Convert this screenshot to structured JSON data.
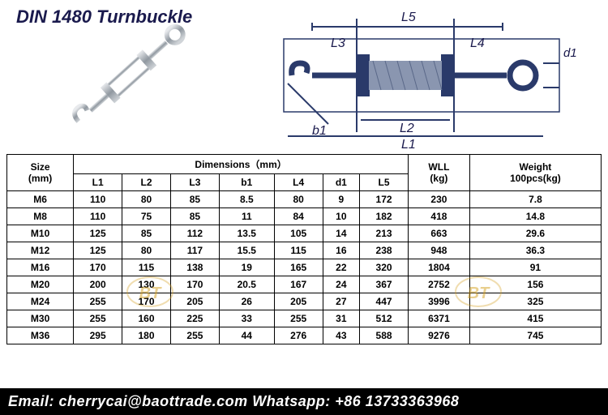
{
  "title": "DIN 1480 Turnbuckle",
  "footer": {
    "email_label": "Email:",
    "email": "cherrycai@baottrade.com",
    "whatsapp_label": "Whatsapp:",
    "whatsapp": "+86 13733363968"
  },
  "diagram_labels": {
    "L1": "L1",
    "L2": "L2",
    "L3": "L3",
    "L4": "L4",
    "L5": "L5",
    "b1": "b1",
    "d1": "d1"
  },
  "headers": {
    "size": "Size\n(mm)",
    "dimensions": "Dimensions（mm）",
    "wll": "WLL\n(kg)",
    "weight": "Weight\n100pcs(kg)",
    "cols": [
      "L1",
      "L2",
      "L3",
      "b1",
      "L4",
      "d1",
      "L5"
    ]
  },
  "rows": [
    {
      "size": "M6",
      "L1": "110",
      "L2": "80",
      "L3": "85",
      "b1": "8.5",
      "L4": "80",
      "d1": "9",
      "L5": "172",
      "wll": "230",
      "weight": "7.8"
    },
    {
      "size": "M8",
      "L1": "110",
      "L2": "75",
      "L3": "85",
      "b1": "11",
      "L4": "84",
      "d1": "10",
      "L5": "182",
      "wll": "418",
      "weight": "14.8"
    },
    {
      "size": "M10",
      "L1": "125",
      "L2": "85",
      "L3": "112",
      "b1": "13.5",
      "L4": "105",
      "d1": "14",
      "L5": "213",
      "wll": "663",
      "weight": "29.6"
    },
    {
      "size": "M12",
      "L1": "125",
      "L2": "80",
      "L3": "117",
      "b1": "15.5",
      "L4": "115",
      "d1": "16",
      "L5": "238",
      "wll": "948",
      "weight": "36.3"
    },
    {
      "size": "M16",
      "L1": "170",
      "L2": "115",
      "L3": "138",
      "b1": "19",
      "L4": "165",
      "d1": "22",
      "L5": "320",
      "wll": "1804",
      "weight": "91"
    },
    {
      "size": "M20",
      "L1": "200",
      "L2": "130",
      "L3": "170",
      "b1": "20.5",
      "L4": "167",
      "d1": "24",
      "L5": "367",
      "wll": "2752",
      "weight": "156"
    },
    {
      "size": "M24",
      "L1": "255",
      "L2": "170",
      "L3": "205",
      "b1": "26",
      "L4": "205",
      "d1": "27",
      "L5": "447",
      "wll": "3996",
      "weight": "325"
    },
    {
      "size": "M30",
      "L1": "255",
      "L2": "160",
      "L3": "225",
      "b1": "33",
      "L4": "255",
      "d1": "31",
      "L5": "512",
      "wll": "6371",
      "weight": "415"
    },
    {
      "size": "M36",
      "L1": "295",
      "L2": "180",
      "L3": "255",
      "b1": "44",
      "L4": "276",
      "d1": "43",
      "L5": "588",
      "wll": "9276",
      "weight": "745"
    }
  ],
  "style": {
    "title_color": "#1a1a4d",
    "border_color": "#000000",
    "footer_bg": "#000000",
    "footer_fg": "#ffffff",
    "diagram_stroke": "#2a3a6a",
    "photo_metal": "#b8bcc2",
    "watermark_color": "#d4a020"
  }
}
